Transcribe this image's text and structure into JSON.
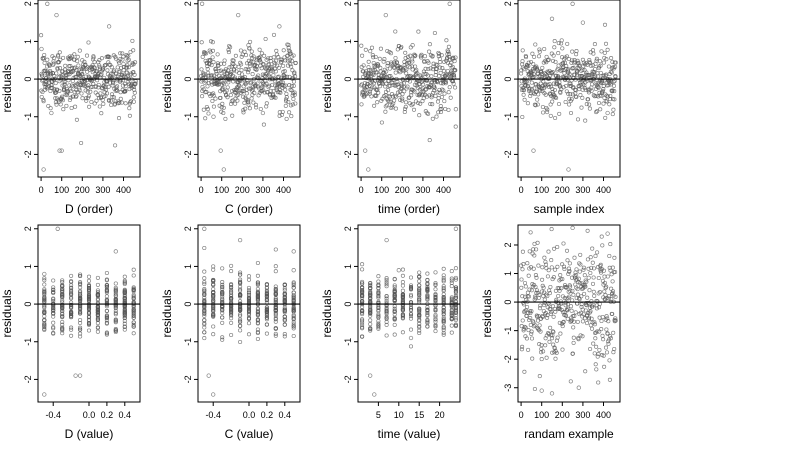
{
  "chart_data": [
    {
      "type": "scatter",
      "xlabel": "D (order)",
      "ylabel": "residuals",
      "xlim": [
        -15,
        480
      ],
      "ylim": [
        -2.6,
        2.1
      ],
      "xticks": [
        0,
        100,
        200,
        300,
        400
      ],
      "yticks": [
        -2,
        -1,
        0,
        1,
        2
      ],
      "hline": 0,
      "x_mode": "index",
      "points": [
        [
          2,
          0.8
        ],
        [
          12,
          -2.4
        ],
        [
          30,
          2.0
        ],
        [
          50,
          -0.9
        ],
        [
          75,
          1.7
        ],
        [
          90,
          -1.9
        ],
        [
          100,
          -1.9
        ],
        [
          140,
          0.6
        ],
        [
          200,
          0.5
        ],
        [
          260,
          0.3
        ],
        [
          330,
          1.4
        ],
        [
          400,
          0.4
        ],
        [
          450,
          -0.6
        ]
      ]
    },
    {
      "type": "scatter",
      "xlabel": "C (order)",
      "ylabel": "residuals",
      "xlim": [
        -15,
        480
      ],
      "ylim": [
        -2.6,
        2.1
      ],
      "xticks": [
        0,
        100,
        200,
        300,
        400
      ],
      "yticks": [
        -2,
        -1,
        0,
        1,
        2
      ],
      "hline": 0,
      "x_mode": "index",
      "points": [
        [
          5,
          2.0
        ],
        [
          60,
          -1.0
        ],
        [
          95,
          -1.9
        ],
        [
          110,
          -2.4
        ],
        [
          180,
          1.7
        ],
        [
          230,
          0.9
        ],
        [
          300,
          -0.9
        ],
        [
          380,
          1.4
        ],
        [
          440,
          0.6
        ]
      ]
    },
    {
      "type": "scatter",
      "xlabel": "time (order)",
      "ylabel": "residuals",
      "xlim": [
        -15,
        480
      ],
      "ylim": [
        -2.6,
        2.1
      ],
      "xticks": [
        0,
        100,
        200,
        300,
        400
      ],
      "yticks": [
        -2,
        -1,
        0,
        1,
        2
      ],
      "hline": 0,
      "x_mode": "index",
      "points": [
        [
          20,
          -1.9
        ],
        [
          35,
          -2.4
        ],
        [
          120,
          1.7
        ],
        [
          250,
          0.9
        ],
        [
          320,
          -0.9
        ],
        [
          430,
          2.0
        ],
        [
          460,
          -0.8
        ]
      ]
    },
    {
      "type": "scatter",
      "xlabel": "sample index",
      "ylabel": "residuals",
      "xlim": [
        -15,
        480
      ],
      "ylim": [
        -2.6,
        2.1
      ],
      "xticks": [
        0,
        100,
        200,
        300,
        400
      ],
      "yticks": [
        -2,
        -1,
        0,
        1,
        2
      ],
      "hline": 0,
      "x_mode": "index",
      "points": [
        [
          60,
          -1.9
        ],
        [
          150,
          1.6
        ],
        [
          230,
          -2.4
        ],
        [
          250,
          2.0
        ],
        [
          300,
          1.5
        ],
        [
          420,
          -0.9
        ]
      ]
    },
    {
      "type": "scatter",
      "xlabel": "D (value)",
      "ylabel": "residuals",
      "xlim": [
        -0.57,
        0.57
      ],
      "ylim": [
        -2.6,
        2.1
      ],
      "xticks": [
        -0.4,
        0.0,
        0.2,
        0.4
      ],
      "xtick_labels": [
        "-0.4",
        "0.0",
        "0.2",
        "0.4"
      ],
      "yticks": [
        -2,
        -1,
        0,
        1,
        2
      ],
      "hline": 0,
      "x_mode": "discrete",
      "x_levels": [
        -0.5,
        -0.4,
        -0.3,
        -0.2,
        -0.1,
        0.0,
        0.1,
        0.2,
        0.3,
        0.4,
        0.5
      ],
      "points": [
        [
          -0.5,
          -2.4
        ],
        [
          -0.35,
          2.0
        ],
        [
          -0.15,
          -1.9
        ],
        [
          -0.1,
          -1.9
        ],
        [
          -0.5,
          0.8
        ],
        [
          0.3,
          1.4
        ],
        [
          0.5,
          -0.6
        ]
      ]
    },
    {
      "type": "scatter",
      "xlabel": "C (value)",
      "ylabel": "residuals",
      "xlim": [
        -0.57,
        0.57
      ],
      "ylim": [
        -2.6,
        2.1
      ],
      "xticks": [
        -0.4,
        0.0,
        0.2,
        0.4
      ],
      "xtick_labels": [
        "-0.4",
        "0.0",
        "0.2",
        "0.4"
      ],
      "yticks": [
        -2,
        -1,
        0,
        1,
        2
      ],
      "hline": 0,
      "x_mode": "discrete",
      "x_levels": [
        -0.5,
        -0.4,
        -0.3,
        -0.2,
        -0.1,
        0.0,
        0.1,
        0.2,
        0.3,
        0.4,
        0.5
      ],
      "points": [
        [
          -0.5,
          2.0
        ],
        [
          -0.45,
          -1.9
        ],
        [
          -0.4,
          -2.4
        ],
        [
          -0.1,
          1.7
        ],
        [
          0.5,
          1.4
        ],
        [
          0.5,
          0.9
        ]
      ]
    },
    {
      "type": "scatter",
      "xlabel": "time (value)",
      "ylabel": "residuals",
      "xlim": [
        0,
        25
      ],
      "ylim": [
        -2.6,
        2.1
      ],
      "xticks": [
        5,
        10,
        15,
        20
      ],
      "yticks": [
        -2,
        -1,
        0,
        1,
        2
      ],
      "hline": 0,
      "x_mode": "discrete",
      "x_levels": [
        1,
        3,
        5,
        7,
        9,
        11,
        13,
        15,
        17,
        19,
        21,
        23,
        24
      ],
      "points": [
        [
          3,
          -1.9
        ],
        [
          4,
          -2.4
        ],
        [
          7,
          1.7
        ],
        [
          10,
          0.9
        ],
        [
          13,
          -0.9
        ],
        [
          24,
          2.0
        ]
      ]
    },
    {
      "type": "scatter",
      "xlabel": "randam example",
      "ylabel": "residuals",
      "xlim": [
        -15,
        480
      ],
      "ylim": [
        -3.5,
        2.7
      ],
      "xticks": [
        0,
        100,
        200,
        300,
        400
      ],
      "yticks": [
        -3,
        -2,
        -1,
        0,
        1,
        2
      ],
      "hline": 0,
      "x_mode": "random",
      "points": [
        [
          100,
          -3.1
        ],
        [
          150,
          -3.2
        ],
        [
          280,
          -3.0
        ],
        [
          250,
          2.6
        ],
        [
          420,
          2.4
        ]
      ]
    }
  ]
}
